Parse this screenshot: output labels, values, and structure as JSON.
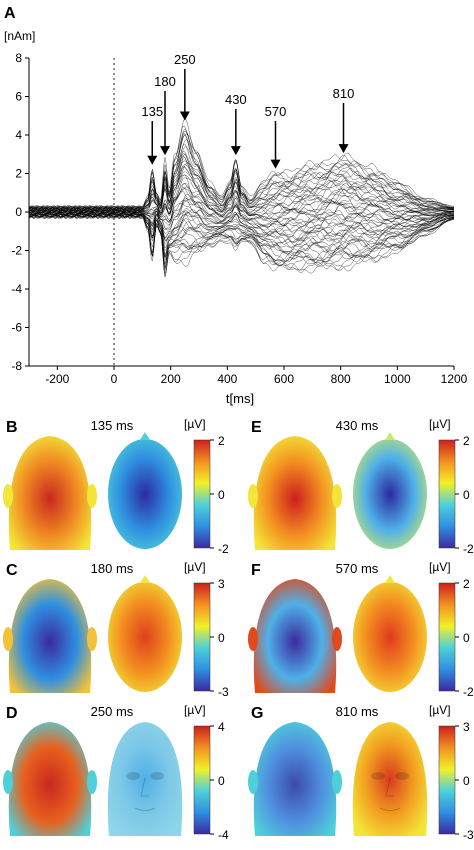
{
  "panel_a": {
    "letter": "A",
    "ylabel": "[nAm]",
    "xlabel": "t[ms]"
  },
  "panels": [
    {
      "letter": "B",
      "time": "135 ms",
      "unit": "[µV]",
      "ticks": [
        "2",
        "0",
        "-2"
      ]
    },
    {
      "letter": "E",
      "time": "430 ms",
      "unit": "[µV]",
      "ticks": [
        "2",
        "0",
        "-2"
      ]
    },
    {
      "letter": "C",
      "time": "180 ms",
      "unit": "[µV]",
      "ticks": [
        "3",
        "0",
        "-3"
      ]
    },
    {
      "letter": "F",
      "time": "570 ms",
      "unit": "[µV]",
      "ticks": [
        "2",
        "0",
        "-2"
      ]
    },
    {
      "letter": "D",
      "time": "250 ms",
      "unit": "[µV]",
      "ticks": [
        "4",
        "0",
        "-4"
      ]
    },
    {
      "letter": "G",
      "time": "810 ms",
      "unit": "[µV]",
      "ticks": [
        "3",
        "0",
        "-3"
      ]
    }
  ],
  "colors": {
    "trace": "#000000",
    "colormap": [
      "#3b2aa0",
      "#2f8fe0",
      "#4fd0d8",
      "#f2f028",
      "#f39020",
      "#cc1e1e"
    ]
  },
  "chart_data": [
    {
      "type": "line",
      "title": "",
      "xlabel": "t[ms]",
      "ylabel": "[nAm]",
      "xlim": [
        -300,
        1200
      ],
      "ylim": [
        -8,
        8
      ],
      "xticks": [
        -200,
        0,
        200,
        400,
        600,
        800,
        1000,
        1200
      ],
      "yticks": [
        8,
        6,
        4,
        2,
        0,
        -2,
        -4,
        -6,
        -8
      ],
      "stimulus_onset": 0,
      "peak_annotations": [
        {
          "label": "135",
          "x": 135,
          "y": 2.3
        },
        {
          "label": "180",
          "x": 180,
          "y": 2.8
        },
        {
          "label": "250",
          "x": 250,
          "y": 4.6
        },
        {
          "label": "430",
          "x": 430,
          "y": 2.8
        },
        {
          "label": "570",
          "x": 570,
          "y": 2.1
        },
        {
          "label": "810",
          "x": 810,
          "y": 2.9
        }
      ],
      "envelope": {
        "x": [
          -300,
          100,
          120,
          135,
          150,
          165,
          180,
          195,
          215,
          250,
          290,
          340,
          380,
          410,
          430,
          450,
          480,
          530,
          570,
          620,
          700,
          810,
          900,
          1000,
          1100,
          1200
        ],
        "upper": [
          0.3,
          0.3,
          0.8,
          2.3,
          1.0,
          0.6,
          2.8,
          1.2,
          3.0,
          4.6,
          3.2,
          1.5,
          0.8,
          1.6,
          2.8,
          1.4,
          0.8,
          1.6,
          2.1,
          2.1,
          2.5,
          2.9,
          2.4,
          1.6,
          0.7,
          0.3
        ],
        "lower": [
          -0.3,
          -0.3,
          -1.0,
          -2.6,
          -0.8,
          -1.2,
          -3.4,
          -2.2,
          -2.5,
          -2.6,
          -2.2,
          -1.8,
          -1.5,
          -1.6,
          -2.0,
          -1.6,
          -1.6,
          -2.6,
          -3.0,
          -3.0,
          -3.0,
          -2.9,
          -2.6,
          -2.1,
          -1.2,
          -0.4
        ]
      }
    },
    {
      "type": "heatmap",
      "title": "135 ms",
      "views": [
        "back",
        "top"
      ],
      "colorbar": {
        "min": -2,
        "max": 2,
        "unit": "[µV]"
      }
    },
    {
      "type": "heatmap",
      "title": "430 ms",
      "views": [
        "back",
        "top"
      ],
      "colorbar": {
        "min": -2,
        "max": 2,
        "unit": "[µV]"
      }
    },
    {
      "type": "heatmap",
      "title": "180 ms",
      "views": [
        "back",
        "top"
      ],
      "colorbar": {
        "min": -3,
        "max": 3,
        "unit": "[µV]"
      }
    },
    {
      "type": "heatmap",
      "title": "570 ms",
      "views": [
        "back",
        "top"
      ],
      "colorbar": {
        "min": -2,
        "max": 2,
        "unit": "[µV]"
      }
    },
    {
      "type": "heatmap",
      "title": "250 ms",
      "views": [
        "back",
        "front"
      ],
      "colorbar": {
        "min": -4,
        "max": 4,
        "unit": "[µV]"
      }
    },
    {
      "type": "heatmap",
      "title": "810 ms",
      "views": [
        "back",
        "front"
      ],
      "colorbar": {
        "min": -3,
        "max": 3,
        "unit": "[µV]"
      }
    }
  ]
}
